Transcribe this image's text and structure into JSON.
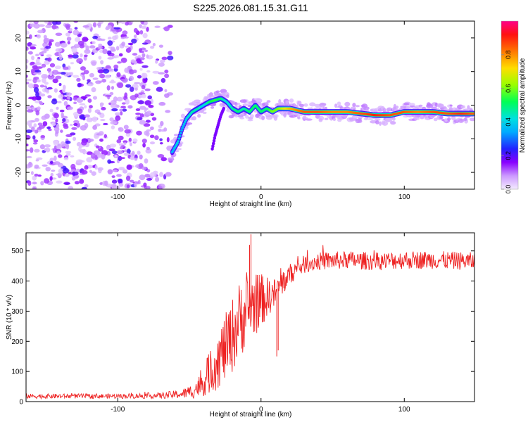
{
  "title": "S225.2026.081.15.31.G11",
  "chart_data": [
    {
      "type": "heatmap",
      "xlabel": "Height of straight line (km)",
      "ylabel": "Frequency (Hz)",
      "xlim": [
        -164,
        149
      ],
      "ylim": [
        -25,
        25
      ],
      "xticks": [
        -100,
        0,
        100
      ],
      "yticks": [
        -20,
        -10,
        0,
        10,
        20
      ],
      "xtick_labels": [
        "-100",
        "0",
        "100"
      ],
      "ytick_labels": [
        "-20",
        "-10",
        "0",
        "10",
        "20"
      ],
      "colorbar": {
        "label": "Normalized spectral amplitude",
        "range": [
          0,
          1
        ],
        "ticks": [
          "0.0",
          "0.2",
          "0.4",
          "0.6",
          "0.8"
        ],
        "tick_values": [
          0,
          0.2,
          0.4,
          0.6,
          0.8
        ]
      },
      "noise_region_x": [
        -164,
        -63
      ],
      "signal_track": {
        "x": [
          -62,
          -58,
          -55,
          -52,
          -48,
          -44,
          -40,
          -36,
          -32,
          -28,
          -24,
          -20,
          -16,
          -12,
          -8,
          -4,
          0,
          4,
          8,
          12,
          16,
          20,
          30,
          40,
          50,
          60,
          70,
          80,
          90,
          100,
          110,
          120,
          130,
          140,
          148
        ],
        "freq": [
          -14,
          -11,
          -7,
          -4,
          -2,
          -1,
          0,
          1,
          1.5,
          2,
          1,
          -1,
          -2,
          -1,
          -2,
          0,
          -2,
          -1,
          -2,
          -1,
          -1,
          -1,
          -2,
          -2,
          -2,
          -2,
          -2.5,
          -3,
          -3,
          -2,
          -2,
          -2,
          -2.5,
          -2.5,
          -2.5
        ],
        "amplitude": [
          0.35,
          0.4,
          0.35,
          0.4,
          0.45,
          0.45,
          0.4,
          0.5,
          0.55,
          0.5,
          0.4,
          0.45,
          0.5,
          0.45,
          0.5,
          0.5,
          0.5,
          0.5,
          0.6,
          0.6,
          0.7,
          0.75,
          0.85,
          0.85,
          0.8,
          0.8,
          0.85,
          0.9,
          0.85,
          0.85,
          0.8,
          0.85,
          0.85,
          0.9,
          0.85
        ]
      },
      "secondary_track": {
        "x": [
          -34,
          -32,
          -30,
          -28,
          -26
        ],
        "freq": [
          -13,
          -9,
          -6,
          -3,
          -1
        ]
      }
    },
    {
      "type": "line",
      "xlabel": "Height of straight line (km)",
      "ylabel": "SNR (10 * v/v)",
      "xlim": [
        -164,
        149
      ],
      "ylim": [
        0,
        560
      ],
      "xticks": [
        -100,
        0,
        100
      ],
      "yticks": [
        0,
        100,
        200,
        300,
        400,
        500
      ],
      "xtick_labels": [
        "-100",
        "0",
        "100"
      ],
      "ytick_labels": [
        "0",
        "100",
        "200",
        "300",
        "400",
        "500"
      ],
      "color": "#ee2222",
      "trend_x": [
        -164,
        -100,
        -70,
        -55,
        -48,
        -42,
        -38,
        -34,
        -30,
        -26,
        -22,
        -18,
        -14,
        -10,
        -6,
        -2,
        2,
        6,
        10,
        14,
        18,
        22,
        26,
        30,
        40,
        60,
        80,
        100,
        120,
        149
      ],
      "trend_snr": [
        18,
        18,
        20,
        25,
        35,
        55,
        80,
        110,
        140,
        170,
        200,
        240,
        280,
        300,
        320,
        330,
        340,
        350,
        360,
        390,
        410,
        430,
        445,
        455,
        465,
        470,
        465,
        470,
        470,
        465
      ],
      "noise_amplitude": [
        8,
        8,
        10,
        15,
        25,
        40,
        60,
        80,
        100,
        110,
        120,
        130,
        130,
        120,
        110,
        100,
        80,
        60,
        50,
        45,
        40,
        35,
        30,
        30,
        30,
        30,
        30,
        30,
        30,
        30
      ],
      "spikes": [
        {
          "x": -7,
          "snr": 555
        },
        {
          "x": -8,
          "snr": 520
        },
        {
          "x": 11,
          "snr": 150
        },
        {
          "x": 12,
          "snr": 170
        }
      ]
    }
  ]
}
